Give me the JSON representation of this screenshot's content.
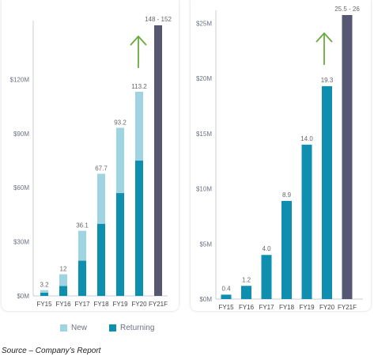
{
  "chart_data": [
    {
      "type": "bar",
      "stacked": true,
      "categories": [
        "FY15",
        "FY16",
        "FY17",
        "FY18",
        "FY19",
        "FY20",
        "FY21F"
      ],
      "series": [
        {
          "name": "Returning",
          "values": [
            1.8,
            5.5,
            19.5,
            40.0,
            57.0,
            75.0,
            null
          ]
        },
        {
          "name": "New",
          "values": [
            1.4,
            6.5,
            16.6,
            27.7,
            36.2,
            38.2,
            null
          ]
        }
      ],
      "forecast": {
        "category": "FY21F",
        "value": 150,
        "range": [
          148,
          152
        ],
        "label": "148 - 152"
      },
      "totals_labels": [
        "3.2",
        "12",
        "36.1",
        "67.7",
        "93.2",
        "113.2"
      ],
      "yticks": [
        "$0M",
        "$30M",
        "$60M",
        "$90M",
        "$120M"
      ],
      "ytick_values": [
        0,
        30,
        60,
        90,
        120
      ],
      "ylim": [
        0,
        150
      ],
      "grid": false
    },
    {
      "type": "bar",
      "categories": [
        "FY15",
        "FY16",
        "FY17",
        "FY18",
        "FY19",
        "FY20",
        "FY21F"
      ],
      "values": [
        0.4,
        1.2,
        4.0,
        8.9,
        14.0,
        19.3,
        null
      ],
      "labels": [
        "0.4",
        "1.2",
        "4.0",
        "8.9",
        "14.0",
        "19.3"
      ],
      "forecast": {
        "category": "FY21F",
        "value": 25.75,
        "range": [
          25.5,
          26
        ],
        "label": "25.5 - 26"
      },
      "yticks": [
        "$0M",
        "$5M",
        "$10M",
        "$15M",
        "$20M",
        "$25M"
      ],
      "ytick_values": [
        0,
        5,
        10,
        15,
        20,
        25
      ],
      "ylim": [
        0,
        25.75
      ],
      "grid": false
    }
  ],
  "legend": {
    "new_label": "New",
    "returning_label": "Returning"
  },
  "source_note": "Source – Company’s Report",
  "colors": {
    "new": "#9fd4e2",
    "returning": "#0e8fb0",
    "forecast": "#565873",
    "axis_text": "#6b7280",
    "growth_arrow": "#6aaa3c"
  }
}
